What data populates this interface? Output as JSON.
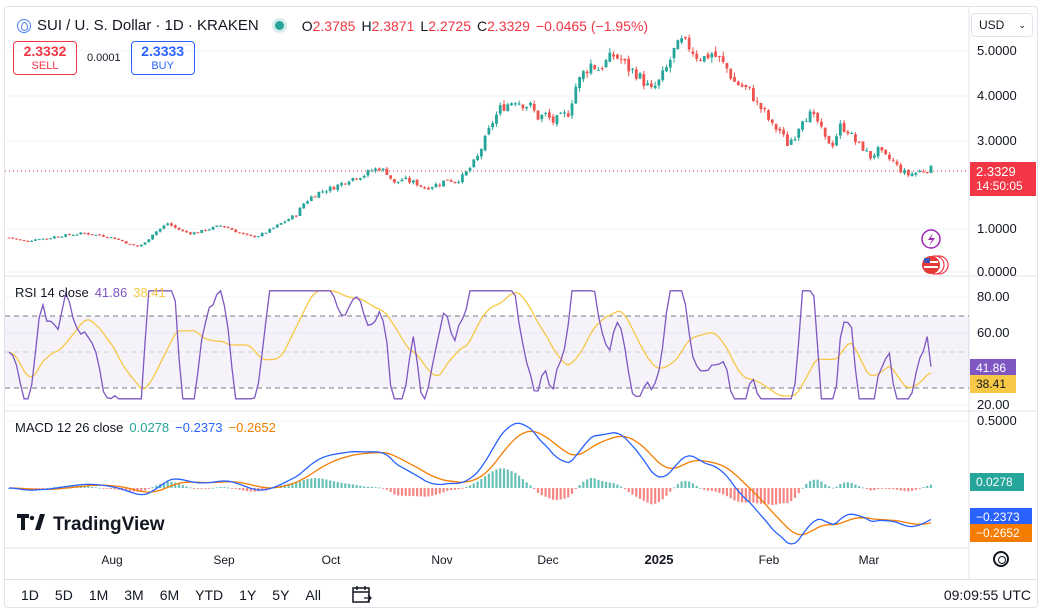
{
  "header": {
    "symbol": "SUI / U. S. Dollar · 1D · KRAKEN",
    "open_k": "O",
    "open": "2.3785",
    "high_k": "H",
    "high": "2.3871",
    "low_k": "L",
    "low": "2.2725",
    "close_k": "C",
    "close": "2.3329",
    "change": "−0.0465 (−1.95%)"
  },
  "trade": {
    "sell_price": "2.3332",
    "sell_label": "SELL",
    "spread": "0.0001",
    "buy_price": "2.3333",
    "buy_label": "BUY"
  },
  "currency": {
    "label": "USD"
  },
  "price_scale": {
    "labels": [
      "5.0000",
      "4.0000",
      "3.0000",
      "1.0000",
      "0.0000"
    ],
    "last_price": "2.3329",
    "countdown": "14:50:05"
  },
  "rsi": {
    "name": "RSI 14 close",
    "value": "41.86",
    "ma_value": "38.41",
    "scale": [
      "80.00",
      "60.00",
      "20.00"
    ]
  },
  "macd": {
    "name": "MACD 12 26 close",
    "hist": "0.0278",
    "macd": "−0.2373",
    "signal": "−0.2652",
    "scale": [
      "0.5000"
    ]
  },
  "time_axis": [
    "Aug",
    "Sep",
    "Oct",
    "Nov",
    "Dec",
    "2025",
    "Feb",
    "Mar"
  ],
  "logo": {
    "name": "TradingView"
  },
  "toolbar": {
    "timeframes": [
      "1D",
      "5D",
      "1M",
      "3M",
      "6M",
      "YTD",
      "1Y",
      "5Y",
      "All"
    ],
    "clock": "09:09:55 UTC"
  },
  "colors": {
    "up": "#26a69a",
    "down": "#ef5350",
    "rsi": "#7e57c2",
    "rsi_ma": "#f7c845",
    "macd": "#2962ff",
    "signal": "#f57c00"
  },
  "chart_data": {
    "type": "candlestick",
    "series_close": [
      0.78,
      0.74,
      0.7,
      0.72,
      0.76,
      0.75,
      0.8,
      0.82,
      0.84,
      0.86,
      0.88,
      0.85,
      0.83,
      0.8,
      0.76,
      0.7,
      0.62,
      0.58,
      0.66,
      0.86,
      0.98,
      1.1,
      1.0,
      0.92,
      0.88,
      0.9,
      0.95,
      1.0,
      1.05,
      1.0,
      0.92,
      0.85,
      0.8,
      0.82,
      0.9,
      1.0,
      1.1,
      1.2,
      1.3,
      1.55,
      1.7,
      1.8,
      1.86,
      1.92,
      2.0,
      2.1,
      2.15,
      2.2,
      2.3,
      2.35,
      2.25,
      2.0,
      2.1,
      2.05,
      2.0,
      1.9,
      1.95,
      2.0,
      2.1,
      2.05,
      2.15,
      2.35,
      2.6,
      3.0,
      3.4,
      3.7,
      3.8,
      3.9,
      3.8,
      3.75,
      3.5,
      3.55,
      3.4,
      3.5,
      3.6,
      4.2,
      4.5,
      4.7,
      4.6,
      4.75,
      4.9,
      4.8,
      4.6,
      4.5,
      4.3,
      4.1,
      4.3,
      4.6,
      5.0,
      5.2,
      5.1,
      4.9,
      4.85,
      4.95,
      4.8,
      4.6,
      4.3,
      4.2,
      4.1,
      3.8,
      3.6,
      3.3,
      3.2,
      2.9,
      3.1,
      3.5,
      3.55,
      3.4,
      3.0,
      2.9,
      3.3,
      3.2,
      2.95,
      2.8,
      2.6,
      2.75,
      2.6,
      2.5,
      2.3,
      2.2,
      2.25,
      2.3,
      2.34
    ]
  }
}
